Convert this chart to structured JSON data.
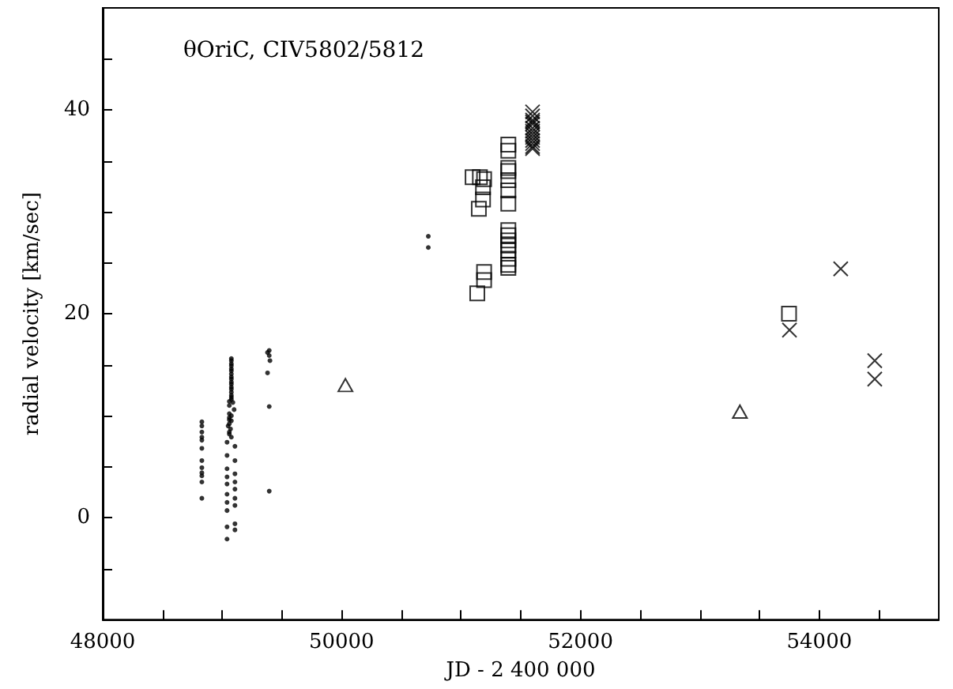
{
  "chart_data": {
    "type": "scatter",
    "title": "θOriC, CIV5802/5812",
    "xlabel": "JD - 2 400 000",
    "ylabel": "radial velocity [km/sec]",
    "xlim": [
      48000,
      55000
    ],
    "xticks": [
      48000,
      {
        "value": 48500,
        "label": null
      },
      {
        "value": 49000,
        "label": null
      },
      {
        "value": 49500,
        "label": null
      },
      50000,
      {
        "value": 50500,
        "label": null
      },
      {
        "value": 51000,
        "label": null
      },
      {
        "value": 51500,
        "label": null
      },
      52000,
      {
        "value": 52500,
        "label": null
      },
      {
        "value": 53000,
        "label": null
      },
      {
        "value": 53500,
        "label": null
      },
      54000,
      {
        "value": 54500,
        "label": null
      }
    ],
    "ylim": [
      -10,
      50
    ],
    "yticks": [
      {
        "value": -5,
        "label": null
      },
      0,
      {
        "value": 5,
        "label": null
      },
      {
        "value": 10,
        "label": null
      },
      {
        "value": 15,
        "label": null
      },
      20,
      {
        "value": 25,
        "label": null
      },
      {
        "value": 30,
        "label": null
      },
      {
        "value": 35,
        "label": null
      },
      40,
      {
        "value": 45,
        "label": null
      }
    ],
    "grid": false,
    "series": [
      {
        "marker": "circle",
        "color": "#000000",
        "x": [
          48830,
          48830,
          48830,
          48830,
          48830,
          48830,
          48830,
          48830,
          48830,
          48830,
          48830,
          48830,
          49077,
          49077,
          49077,
          49077,
          49077,
          49077,
          49077,
          49077,
          49077,
          49077,
          49077,
          49077,
          49077,
          49077,
          49077,
          49077,
          49077,
          49060,
          49090,
          49060,
          49100,
          49060,
          49077,
          49060,
          49060,
          49077,
          49060,
          49050,
          49070,
          49060,
          49060,
          49077,
          49041,
          49107,
          49041,
          49107,
          49041,
          49107,
          49041,
          49107,
          49041,
          49107,
          49041,
          49107,
          49041,
          49107,
          49041,
          49107,
          49041,
          49107,
          49041,
          49394,
          49380,
          49394,
          49400,
          49380,
          49394,
          49394
        ],
        "values": [
          9.4,
          9.0,
          8.4,
          7.9,
          7.6,
          6.8,
          5.6,
          4.9,
          4.4,
          4.1,
          3.5,
          1.9,
          15.6,
          15.4,
          15.1,
          14.9,
          14.6,
          14.4,
          14.1,
          13.8,
          13.6,
          13.3,
          13.1,
          12.8,
          12.6,
          12.3,
          12.0,
          11.8,
          11.6,
          11.4,
          11.3,
          11.0,
          10.6,
          10.2,
          10.0,
          9.8,
          9.6,
          9.5,
          9.2,
          9.0,
          8.7,
          8.4,
          8.2,
          7.9,
          7.4,
          7.0,
          6.1,
          5.6,
          4.8,
          4.3,
          4.0,
          3.5,
          3.3,
          2.8,
          2.3,
          1.9,
          1.5,
          1.2,
          0.7,
          -0.6,
          -0.9,
          -1.2,
          -2.1,
          16.4,
          16.2,
          15.9,
          15.4,
          14.2,
          10.9,
          2.6
        ]
      },
      {
        "marker": "triangle",
        "color": "#000000",
        "x": [
          50032,
          53335
        ],
        "values": [
          13.0,
          10.4
        ]
      },
      {
        "marker": "circle",
        "color": "#000000",
        "x": [
          50726,
          50726
        ],
        "values": [
          27.6,
          26.5
        ]
      },
      {
        "marker": "square",
        "color": "#000000",
        "x": [
          51097,
          51158,
          51193,
          51184,
          51184,
          51149,
          51193,
          51193,
          51136,
          51396,
          51396,
          51396,
          51396,
          51396,
          51396,
          51396,
          51396,
          51396,
          51396,
          51396,
          51396,
          51396,
          51396,
          51396,
          53746
        ],
        "values": [
          33.4,
          33.4,
          33.2,
          32.4,
          31.2,
          30.3,
          24.1,
          23.3,
          22.0,
          36.6,
          36.0,
          34.3,
          34.0,
          33.1,
          32.1,
          30.8,
          28.2,
          27.7,
          27.2,
          26.7,
          26.2,
          25.4,
          24.8,
          24.5,
          20.0
        ]
      },
      {
        "marker": "cross",
        "color": "#000000",
        "x": [
          51599,
          51599,
          51599,
          51599,
          51599,
          51599,
          51599,
          51599,
          51599,
          51599,
          51599,
          51599,
          51599
        ],
        "values": [
          39.8,
          39.4,
          39.0,
          38.6,
          38.2,
          37.9,
          37.6,
          37.3,
          37.0,
          36.7,
          36.4,
          36.2,
          38.8
        ]
      },
      {
        "marker": "cross",
        "color": "#000000",
        "x": [
          54179,
          53750,
          54464,
          54464
        ],
        "values": [
          24.4,
          18.4,
          15.4,
          13.6
        ]
      }
    ]
  }
}
